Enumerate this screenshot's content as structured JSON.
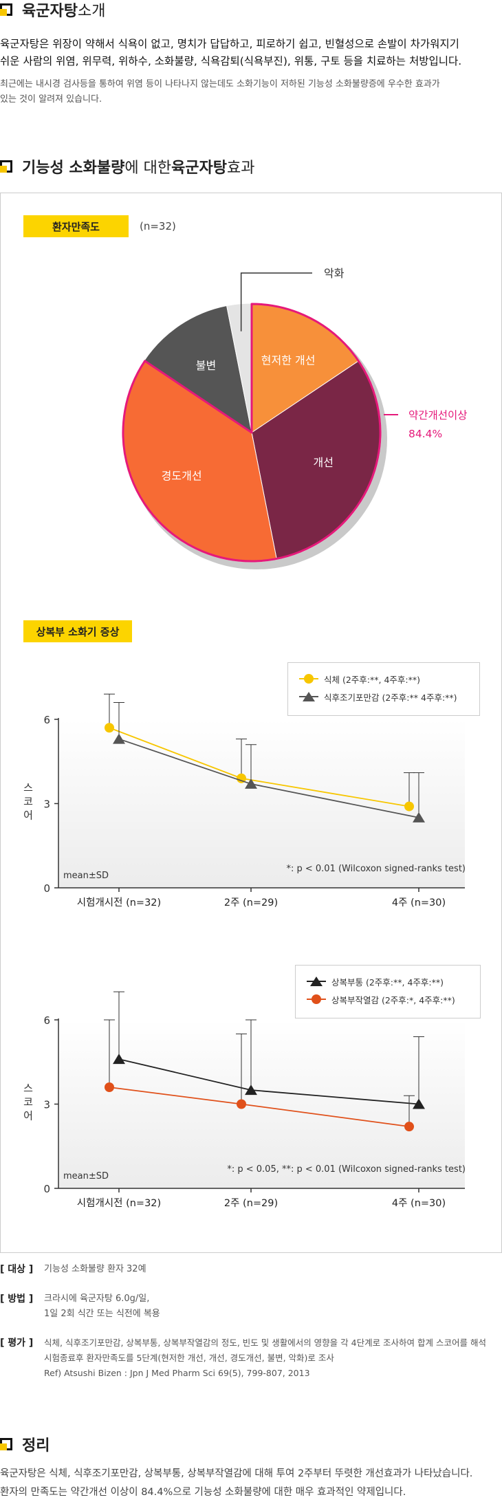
{
  "intro": {
    "title_bold": "육군자탕",
    "title_rest": " 소개",
    "para1_line1": "육군자탕은 위장이 약해서 식욕이 없고, 명치가 답답하고, 피로하기 쉽고, 빈혈성으로 손발이 차가워지기",
    "para1_line2": "쉬운 사람의 위염, 위무력, 위하수, 소화불량, 식욕감퇴(식욕부진), 위통, 구토 등을 치료하는 처방입니다.",
    "para2_line1": "최근에는 내시경 검사등을 통하여 위염 등이 나타나지 않는데도 소화기능이 저하된 기능성 소화불량증에 우수한 효과가",
    "para2_line2": "있는 것이 알려져 있습니다."
  },
  "effect": {
    "title_part1": "기능성 소화불량",
    "title_part2": "에 대한 ",
    "title_part3": "육군자탕",
    "title_part4": " 효과"
  },
  "satisfaction": {
    "tag": "환자만족도",
    "n": "(n=32)",
    "chart_data": {
      "type": "pie",
      "title": "환자만족도",
      "slices": [
        {
          "label": "현저한 개선",
          "value": 15.6,
          "color": "#f7903a"
        },
        {
          "label": "개선",
          "value": 31.3,
          "color": "#7a2646"
        },
        {
          "label": "경도개선",
          "value": 37.5,
          "color": "#f76b34"
        },
        {
          "label": "불변",
          "value": 12.5,
          "color": "#555555"
        },
        {
          "label": "악화",
          "value": 3.1,
          "color": "#e4e4e4"
        }
      ],
      "highlight": {
        "label": "약간개선이상",
        "value": "84.4%",
        "color": "#e5197a"
      }
    }
  },
  "symptoms": {
    "tag": "상복부 소화기 증상",
    "ylabel": "스코어",
    "chart1": {
      "chart_data": {
        "type": "line",
        "categories": [
          "시험개시전 (n=32)",
          "2주 (n=29)",
          "4주 (n=30)"
        ],
        "ylim": [
          0,
          6
        ],
        "yticks": [
          0,
          3,
          6
        ],
        "ylabel": "스코어",
        "series": [
          {
            "name": "식체 (2주후:**, 4주후:**)",
            "values": [
              5.7,
              3.9,
              2.9
            ],
            "sd": [
              1.2,
              1.4,
              1.2
            ],
            "marker": "circle",
            "color": "#f7c600"
          },
          {
            "name": "식후조기포만감 (2주후:** 4주후:**)",
            "values": [
              5.3,
              3.7,
              2.5
            ],
            "sd": [
              1.3,
              1.4,
              1.6
            ],
            "marker": "triangle",
            "color": "#555555"
          }
        ],
        "note_left": "mean±SD",
        "note_right": "*: p < 0.01 (Wilcoxon signed-ranks test)"
      }
    },
    "chart2": {
      "chart_data": {
        "type": "line",
        "categories": [
          "시험개시전 (n=32)",
          "2주 (n=29)",
          "4주 (n=30)"
        ],
        "ylim": [
          0,
          6
        ],
        "yticks": [
          0,
          3,
          6
        ],
        "ylabel": "스코어",
        "series": [
          {
            "name": "상복부통 (2주후:**, 4주후:**)",
            "values": [
              4.6,
              3.5,
              3.0
            ],
            "sd": [
              2.4,
              2.5,
              2.4
            ],
            "marker": "triangle",
            "color": "#222222"
          },
          {
            "name": "상복부작열감 (2주후:*, 4주후:**)",
            "values": [
              3.6,
              3.0,
              2.2
            ],
            "sd": [
              2.4,
              2.5,
              1.1
            ],
            "marker": "circle",
            "color": "#e0501a"
          }
        ],
        "note_left": "mean±SD",
        "note_right": "*: p < 0.05,  **: p < 0.01 (Wilcoxon signed-ranks test)"
      }
    }
  },
  "info": {
    "target_label": "[ 대상 ]",
    "target_text": "기능성 소화불량 환자 32예",
    "method_label": "[ 방법 ]",
    "method_line1": "크라시에 육군자탕 6.0g/일,",
    "method_line2": "1일 2회 식간 또는 식전에 복용",
    "eval_label": "[ 평가 ]",
    "eval_line1": "식체, 식후조기포만감, 상복부통, 상복부작열감의 정도, 빈도 및 생활에서의 영향을 각 4단계로 조사하여 합계 스코어를 해석",
    "eval_line2": "시험종료후 환자만족도를 5단계(현저한 개선, 개선, 경도개선, 불변, 악화)로 조사",
    "eval_line3": "Ref) Atsushi Bizen : Jpn J Med Pharm Sci 69(5), 799-807, 2013"
  },
  "summary": {
    "title": "정리",
    "line1": "육군자탕은 식체, 식후조기포만감, 상복부통, 상복부작열감에 대해 투여 2주부터 뚜렷한 개선효과가 나타났습니다.",
    "line2": "환자의 만족도는 약간개선 이상이 84.4%으로 기능성 소화불량에 대한 매우 효과적인 약제입니다."
  }
}
